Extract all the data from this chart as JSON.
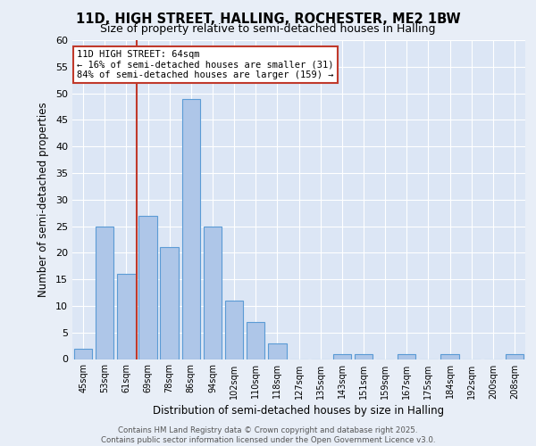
{
  "title_line1": "11D, HIGH STREET, HALLING, ROCHESTER, ME2 1BW",
  "title_line2": "Size of property relative to semi-detached houses in Halling",
  "xlabel": "Distribution of semi-detached houses by size in Halling",
  "ylabel": "Number of semi-detached properties",
  "categories": [
    "45sqm",
    "53sqm",
    "61sqm",
    "69sqm",
    "78sqm",
    "86sqm",
    "94sqm",
    "102sqm",
    "110sqm",
    "118sqm",
    "127sqm",
    "135sqm",
    "143sqm",
    "151sqm",
    "159sqm",
    "167sqm",
    "175sqm",
    "184sqm",
    "192sqm",
    "200sqm",
    "208sqm"
  ],
  "values": [
    2,
    25,
    16,
    27,
    21,
    49,
    25,
    11,
    7,
    3,
    0,
    0,
    1,
    1,
    0,
    1,
    0,
    1,
    0,
    0,
    1
  ],
  "bar_color": "#aec6e8",
  "bar_edge_color": "#5b9bd5",
  "background_color": "#e8eef7",
  "plot_bg_color": "#dce6f5",
  "grid_color": "#ffffff",
  "vline_color": "#c0392b",
  "annotation_text": "11D HIGH STREET: 64sqm\n← 16% of semi-detached houses are smaller (31)\n84% of semi-detached houses are larger (159) →",
  "annotation_box_color": "#c0392b",
  "ylim": [
    0,
    60
  ],
  "yticks": [
    0,
    5,
    10,
    15,
    20,
    25,
    30,
    35,
    40,
    45,
    50,
    55,
    60
  ],
  "footer_line1": "Contains HM Land Registry data © Crown copyright and database right 2025.",
  "footer_line2": "Contains public sector information licensed under the Open Government Licence v3.0."
}
